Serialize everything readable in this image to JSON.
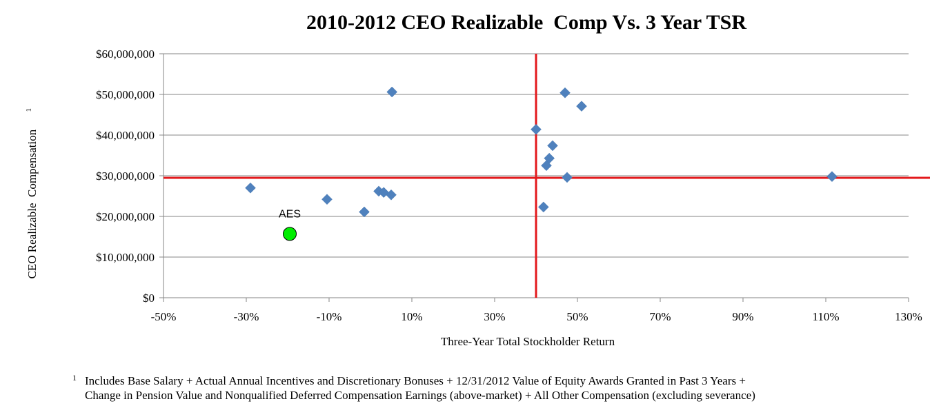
{
  "chart_data": {
    "type": "scatter",
    "title": "2010-2012 CEO Realizable  Comp Vs. 3 Year TSR",
    "xlabel": "Three-Year Total Stockholder Return",
    "ylabel": "CEO Realizable  Compensation",
    "ylabel_superscript": "1",
    "xlim": [
      -0.5,
      1.3
    ],
    "ylim": [
      0,
      60000000
    ],
    "x_ticks": [
      "-50%",
      "-30%",
      "-10%",
      "10%",
      "30%",
      "50%",
      "70%",
      "90%",
      "110%",
      "130%"
    ],
    "y_ticks": [
      "$0",
      "$10,000,000",
      "$20,000,000",
      "$30,000,000",
      "$40,000,000",
      "$50,000,000",
      "$60,000,000"
    ],
    "grid": "horizontal",
    "reference_lines": {
      "x": 0.4,
      "y": 29500000,
      "color": "#e3191c"
    },
    "series": [
      {
        "marker": "diamond",
        "color": "#4f81bd",
        "points": [
          {
            "x": -0.29,
            "y": 27000000
          },
          {
            "x": -0.105,
            "y": 24200000
          },
          {
            "x": -0.015,
            "y": 21100000
          },
          {
            "x": 0.02,
            "y": 26200000
          },
          {
            "x": 0.032,
            "y": 25900000
          },
          {
            "x": 0.05,
            "y": 25300000
          },
          {
            "x": 0.052,
            "y": 50600000
          },
          {
            "x": 0.4,
            "y": 41400000
          },
          {
            "x": 0.418,
            "y": 22300000
          },
          {
            "x": 0.425,
            "y": 32500000
          },
          {
            "x": 0.432,
            "y": 34300000
          },
          {
            "x": 0.44,
            "y": 37400000
          },
          {
            "x": 0.47,
            "y": 50400000
          },
          {
            "x": 0.475,
            "y": 29600000
          },
          {
            "x": 0.51,
            "y": 47100000
          },
          {
            "x": 1.115,
            "y": 29800000
          }
        ]
      },
      {
        "marker": "circle",
        "color": "#00ee00",
        "label": "AES",
        "points": [
          {
            "x": -0.195,
            "y": 15700000
          }
        ]
      }
    ]
  },
  "footnote": {
    "marker": "1",
    "line1": "Includes Base Salary + Actual Annual Incentives and Discretionary Bonuses + 12/31/2012 Value of Equity Awards Granted in Past 3 Years +",
    "line2": "Change in Pension Value and Nonqualified Deferred Compensation Earnings (above-market) + All Other Compensation (excluding severance)"
  }
}
